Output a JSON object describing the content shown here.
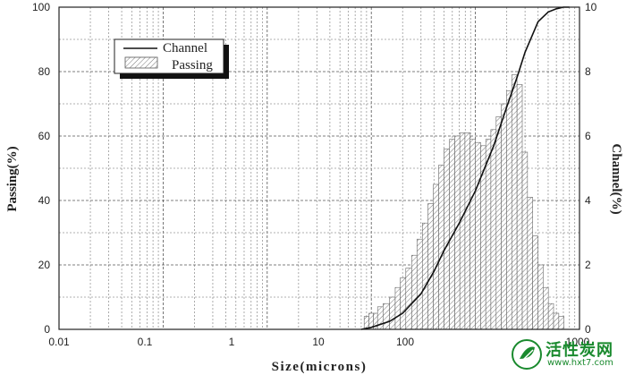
{
  "chart_data": {
    "type": "bar",
    "xscale": "log",
    "xlim": [
      0.01,
      1000
    ],
    "x_ticks": [
      "0.01",
      "0.1",
      "1",
      "10",
      "100",
      "1000"
    ],
    "xlabel": "Size(microns)",
    "ylabel_left": "Passing(%)",
    "ylabel_right": "Channel(%)",
    "ylim_left": [
      0,
      100
    ],
    "ylim_right": [
      0,
      10
    ],
    "y_ticks_left": [
      "0",
      "20",
      "40",
      "60",
      "80",
      "100"
    ],
    "y_ticks_right": [
      "0",
      "2",
      "4",
      "6",
      "8",
      "10"
    ],
    "grid": true,
    "legend_position": "top-left",
    "series": [
      {
        "name": "Channel",
        "kind": "line",
        "axis": "left",
        "x": [
          8,
          10,
          15,
          20,
          30,
          40,
          50,
          70,
          100,
          150,
          200,
          250,
          300,
          400,
          500,
          600,
          700,
          800
        ],
        "y": [
          0,
          0.6,
          2.5,
          5,
          11,
          18,
          24.5,
          33,
          43,
          57,
          69,
          78,
          86,
          95.5,
          98.5,
          99.5,
          100,
          100
        ]
      },
      {
        "name": "Passing",
        "kind": "bar",
        "axis": "right",
        "x": [
          9,
          10,
          11,
          12,
          14,
          16,
          18,
          20,
          23,
          26,
          29,
          33,
          37,
          42,
          47,
          53,
          60,
          67,
          75,
          84,
          94,
          106,
          119,
          133,
          149,
          168,
          188,
          211,
          237,
          266,
          299,
          335,
          376,
          422,
          474,
          532,
          597,
          670
        ],
        "y": [
          0.4,
          0.5,
          0.5,
          0.7,
          0.8,
          1.0,
          1.3,
          1.6,
          1.9,
          2.3,
          2.8,
          3.3,
          3.9,
          4.5,
          5.1,
          5.6,
          5.9,
          6.0,
          6.1,
          6.1,
          5.9,
          5.8,
          5.7,
          5.9,
          6.2,
          6.6,
          7.0,
          7.4,
          7.9,
          7.6,
          5.5,
          4.1,
          2.9,
          2.0,
          1.3,
          0.8,
          0.5,
          0.4
        ]
      }
    ]
  },
  "watermark": {
    "title": "活性炭网",
    "url": "www.hxt7.com"
  }
}
